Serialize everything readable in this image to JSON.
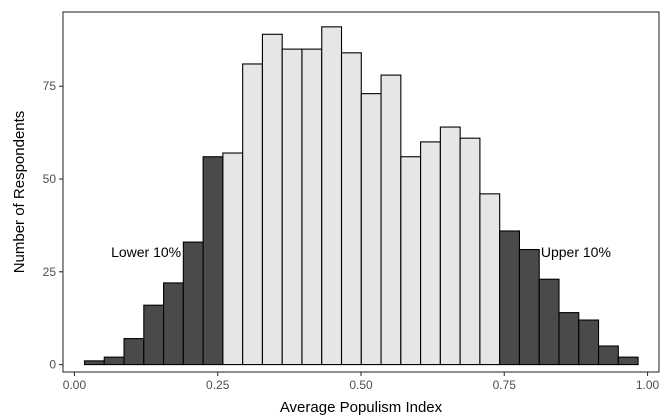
{
  "chart_data": {
    "type": "bar",
    "title": "",
    "xlabel": "Average Populism Index",
    "ylabel": "Number of Respondents",
    "xlim": [
      -0.02,
      1.02
    ],
    "ylim": [
      -2,
      95
    ],
    "bin_width": 0.0345,
    "bin_start": 0.0175,
    "values": [
      1,
      2,
      7,
      16,
      22,
      33,
      56,
      57,
      81,
      89,
      85,
      85,
      91,
      84,
      73,
      78,
      56,
      60,
      64,
      61,
      46,
      36,
      31,
      23,
      14,
      12,
      5,
      2
    ],
    "highlight": {
      "lower_bins": 7,
      "upper_bins": 7,
      "tail_color": "#4a4a4a",
      "middle_color": "#e6e6e6",
      "edge_color": "#000000"
    },
    "x_ticks": [
      {
        "value": 0.0,
        "label": "0.00"
      },
      {
        "value": 0.25,
        "label": "0.25"
      },
      {
        "value": 0.5,
        "label": "0.50"
      },
      {
        "value": 0.75,
        "label": "0.75"
      },
      {
        "value": 1.0,
        "label": "1.00"
      }
    ],
    "y_ticks": [
      {
        "value": 0,
        "label": "0"
      },
      {
        "value": 25,
        "label": "25"
      },
      {
        "value": 50,
        "label": "50"
      },
      {
        "value": 75,
        "label": "75"
      }
    ],
    "annotations": [
      {
        "text": "Lower 10%",
        "x": 0.125,
        "y": 29
      },
      {
        "text": "Upper 10%",
        "x": 0.875,
        "y": 29
      }
    ],
    "grid": false,
    "legend": "none"
  }
}
